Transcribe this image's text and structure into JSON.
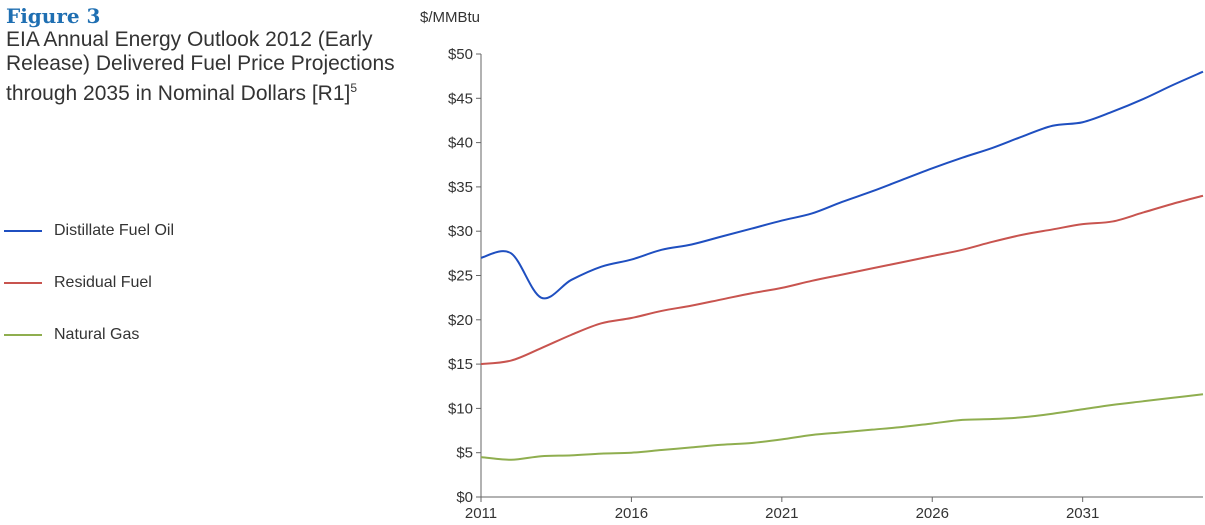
{
  "chart_data": {
    "type": "line",
    "title": "Figure 3",
    "subtitle": "EIA Annual Energy Outlook 2012 (Early Release) Delivered Fuel Price Projections through 2035 in Nominal Dollars [R1]",
    "subtitle_footnote": "5",
    "y_label": "$/MMBtu",
    "x": [
      2011,
      2012,
      2013,
      2014,
      2015,
      2016,
      2017,
      2018,
      2019,
      2020,
      2021,
      2022,
      2023,
      2024,
      2025,
      2026,
      2027,
      2028,
      2029,
      2030,
      2031,
      2032,
      2033,
      2034,
      2035
    ],
    "series": [
      {
        "name": "Distillate Fuel Oil",
        "color": "#1f4fc0",
        "values": [
          27.0,
          27.5,
          22.5,
          24.5,
          26.0,
          26.8,
          27.9,
          28.5,
          29.4,
          30.3,
          31.2,
          32.0,
          33.3,
          34.5,
          35.8,
          37.1,
          38.3,
          39.4,
          40.7,
          41.9,
          42.3,
          43.5,
          44.9,
          46.5,
          48.0
        ]
      },
      {
        "name": "Residual Fuel",
        "color": "#c8544f",
        "values": [
          15.0,
          15.4,
          16.8,
          18.3,
          19.6,
          20.2,
          21.0,
          21.6,
          22.3,
          23.0,
          23.6,
          24.4,
          25.1,
          25.8,
          26.5,
          27.2,
          27.9,
          28.8,
          29.6,
          30.2,
          30.8,
          31.1,
          32.1,
          33.1,
          34.0
        ]
      },
      {
        "name": "Natural Gas",
        "color": "#8fae4f",
        "values": [
          4.5,
          4.2,
          4.6,
          4.7,
          4.9,
          5.0,
          5.3,
          5.6,
          5.9,
          6.1,
          6.5,
          7.0,
          7.3,
          7.6,
          7.9,
          8.3,
          8.7,
          8.8,
          9.0,
          9.4,
          9.9,
          10.4,
          10.8,
          11.2,
          11.6
        ]
      }
    ],
    "xlim": [
      2011,
      2035
    ],
    "xticks": [
      2011,
      2016,
      2021,
      2026,
      2031
    ],
    "ylim": [
      0,
      50
    ],
    "yticks": [
      {
        "value": 0,
        "label": "$0"
      },
      {
        "value": 5,
        "label": "$5"
      },
      {
        "value": 10,
        "label": "$10"
      },
      {
        "value": 15,
        "label": "$15"
      },
      {
        "value": 20,
        "label": "$20"
      },
      {
        "value": 25,
        "label": "$25"
      },
      {
        "value": 30,
        "label": "$30"
      },
      {
        "value": 35,
        "label": "$35"
      },
      {
        "value": 40,
        "label": "$40"
      },
      {
        "value": 45,
        "label": "$45"
      },
      {
        "value": 50,
        "label": "$50"
      }
    ],
    "grid": false
  }
}
